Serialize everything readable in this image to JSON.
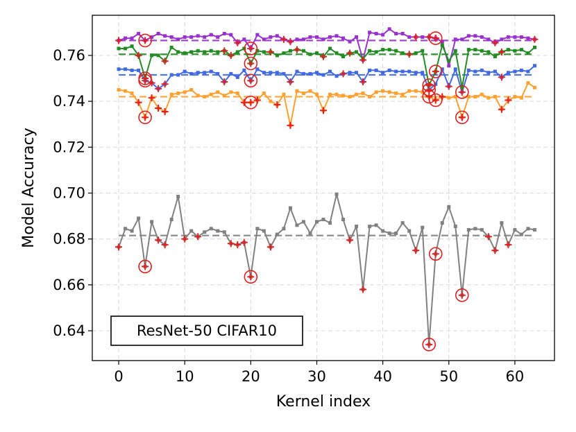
{
  "chart_data": {
    "type": "line",
    "annotation": "ResNet-50 CIFAR10",
    "xlabel": "Kernel index",
    "ylabel": "Model Accuracy",
    "xlim": [
      -4,
      66
    ],
    "ylim": [
      0.627,
      0.7775
    ],
    "xticks": [
      0,
      10,
      20,
      30,
      40,
      50,
      60
    ],
    "xtick_labels": [
      "0",
      "10",
      "20",
      "30",
      "40",
      "50",
      "60"
    ],
    "yticks": [
      0.64,
      0.66,
      0.68,
      0.7,
      0.72,
      0.74,
      0.76
    ],
    "ytick_labels": [
      "0.64",
      "0.66",
      "0.68",
      "0.70",
      "0.72",
      "0.74",
      "0.76"
    ],
    "grid": true,
    "colors": {
      "purple": "#9932cc",
      "green": "#228b22",
      "blue": "#4169e1",
      "orange": "#ffa030",
      "gray": "#808080",
      "marker_red": "#e02020"
    },
    "series": [
      {
        "name": "purple",
        "color": "#9932cc",
        "baseline": 0.7665,
        "values": [
          0.7665,
          0.7675,
          0.7675,
          0.7695,
          0.7665,
          0.768,
          0.7695,
          0.7685,
          0.768,
          0.767,
          0.768,
          0.768,
          0.7685,
          0.768,
          0.769,
          0.768,
          0.7695,
          0.769,
          0.7655,
          0.767,
          0.763,
          0.769,
          0.767,
          0.768,
          0.7685,
          0.767,
          0.766,
          0.767,
          0.767,
          0.768,
          0.768,
          0.767,
          0.768,
          0.7685,
          0.7675,
          0.766,
          0.768,
          0.758,
          0.77,
          0.7695,
          0.769,
          0.7715,
          0.7695,
          0.7695,
          0.768,
          0.768,
          0.768,
          0.768,
          0.7675,
          0.766,
          0.7555,
          0.767,
          0.767,
          0.7685,
          0.7685,
          0.768,
          0.767,
          0.7655,
          0.767,
          0.768,
          0.768,
          0.768,
          0.7675,
          0.767
        ],
        "crosses": [
          0,
          18,
          25,
          26,
          37,
          45,
          47,
          48,
          57,
          63
        ],
        "circles": [
          4,
          20,
          48
        ]
      },
      {
        "name": "green",
        "color": "#228b22",
        "baseline": 0.7605,
        "values": [
          0.763,
          0.763,
          0.764,
          0.76,
          0.75,
          0.76,
          0.76,
          0.7575,
          0.7635,
          0.7615,
          0.761,
          0.7615,
          0.762,
          0.7615,
          0.762,
          0.7615,
          0.762,
          0.76,
          0.7615,
          0.763,
          0.7565,
          0.762,
          0.7615,
          0.7615,
          0.76,
          0.761,
          0.762,
          0.7625,
          0.762,
          0.7605,
          0.761,
          0.7595,
          0.763,
          0.761,
          0.7595,
          0.761,
          0.7615,
          0.7585,
          0.762,
          0.7615,
          0.7625,
          0.7625,
          0.762,
          0.761,
          0.7605,
          0.761,
          0.762,
          0.747,
          0.753,
          0.7645,
          0.7575,
          0.762,
          0.746,
          0.7625,
          0.7625,
          0.762,
          0.7615,
          0.7595,
          0.7615,
          0.7625,
          0.762,
          0.7625,
          0.761,
          0.7635
        ],
        "crosses": [
          3,
          7,
          16,
          17,
          23,
          27,
          31,
          35,
          44,
          58
        ],
        "circles": [
          4,
          20,
          47,
          48
        ]
      },
      {
        "name": "blue",
        "color": "#4169e1",
        "baseline": 0.7515,
        "values": [
          0.754,
          0.754,
          0.7535,
          0.7535,
          0.749,
          0.748,
          0.7455,
          0.7475,
          0.7515,
          0.7515,
          0.753,
          0.752,
          0.7525,
          0.7525,
          0.753,
          0.752,
          0.7485,
          0.752,
          0.7505,
          0.7535,
          0.749,
          0.754,
          0.7525,
          0.7525,
          0.7525,
          0.752,
          0.7485,
          0.753,
          0.752,
          0.752,
          0.7525,
          0.7515,
          0.753,
          0.751,
          0.752,
          0.7525,
          0.7525,
          0.7485,
          0.7535,
          0.7535,
          0.7525,
          0.7535,
          0.753,
          0.753,
          0.753,
          0.7525,
          0.7525,
          0.745,
          0.7475,
          0.754,
          0.7465,
          0.754,
          0.744,
          0.7535,
          0.753,
          0.7535,
          0.7525,
          0.753,
          0.7505,
          0.7525,
          0.753,
          0.7535,
          0.753,
          0.7555
        ],
        "crosses": [
          5,
          6,
          7,
          16,
          26,
          34,
          37,
          50,
          58
        ],
        "circles": [
          4,
          20,
          47,
          52
        ]
      },
      {
        "name": "orange",
        "color": "#ffa030",
        "baseline": 0.742,
        "values": [
          0.745,
          0.7445,
          0.7435,
          0.7395,
          0.733,
          0.7415,
          0.737,
          0.7355,
          0.743,
          0.7435,
          0.744,
          0.745,
          0.7425,
          0.742,
          0.743,
          0.744,
          0.7425,
          0.744,
          0.7435,
          0.7395,
          0.7395,
          0.7405,
          0.7435,
          0.74,
          0.7385,
          0.743,
          0.7295,
          0.7445,
          0.7435,
          0.7445,
          0.743,
          0.736,
          0.743,
          0.743,
          0.7425,
          0.742,
          0.743,
          0.7435,
          0.742,
          0.744,
          0.7445,
          0.744,
          0.7435,
          0.743,
          0.7445,
          0.7445,
          0.744,
          0.742,
          0.7405,
          0.742,
          0.7415,
          0.742,
          0.733,
          0.742,
          0.742,
          0.743,
          0.7415,
          0.742,
          0.7365,
          0.7405,
          0.742,
          0.7415,
          0.748,
          0.746
        ],
        "crosses": [
          3,
          5,
          6,
          7,
          19,
          21,
          24,
          26,
          31,
          49,
          52,
          58,
          59
        ],
        "circles": [
          4,
          20,
          47,
          48,
          52
        ]
      },
      {
        "name": "gray",
        "color": "#808080",
        "baseline": 0.6815,
        "values": [
          0.6765,
          0.6845,
          0.6835,
          0.689,
          0.668,
          0.6875,
          0.6795,
          0.6775,
          0.6885,
          0.6985,
          0.68,
          0.6835,
          0.681,
          0.683,
          0.6845,
          0.6835,
          0.683,
          0.678,
          0.6775,
          0.6785,
          0.6635,
          0.6845,
          0.6835,
          0.6765,
          0.682,
          0.6845,
          0.6935,
          0.686,
          0.6875,
          0.6825,
          0.6875,
          0.6885,
          0.687,
          0.6995,
          0.6885,
          0.6795,
          0.6855,
          0.658,
          0.6855,
          0.686,
          0.6835,
          0.6825,
          0.6825,
          0.687,
          0.6835,
          0.675,
          0.685,
          0.634,
          0.6735,
          0.687,
          0.694,
          0.6855,
          0.6555,
          0.684,
          0.6845,
          0.684,
          0.681,
          0.675,
          0.687,
          0.6775,
          0.684,
          0.682,
          0.6845,
          0.684
        ],
        "crosses": [
          0,
          6,
          7,
          10,
          12,
          17,
          18,
          19,
          23,
          35,
          37,
          45,
          56,
          57,
          59
        ],
        "circles": [
          4,
          20,
          47,
          48,
          52
        ]
      }
    ]
  }
}
